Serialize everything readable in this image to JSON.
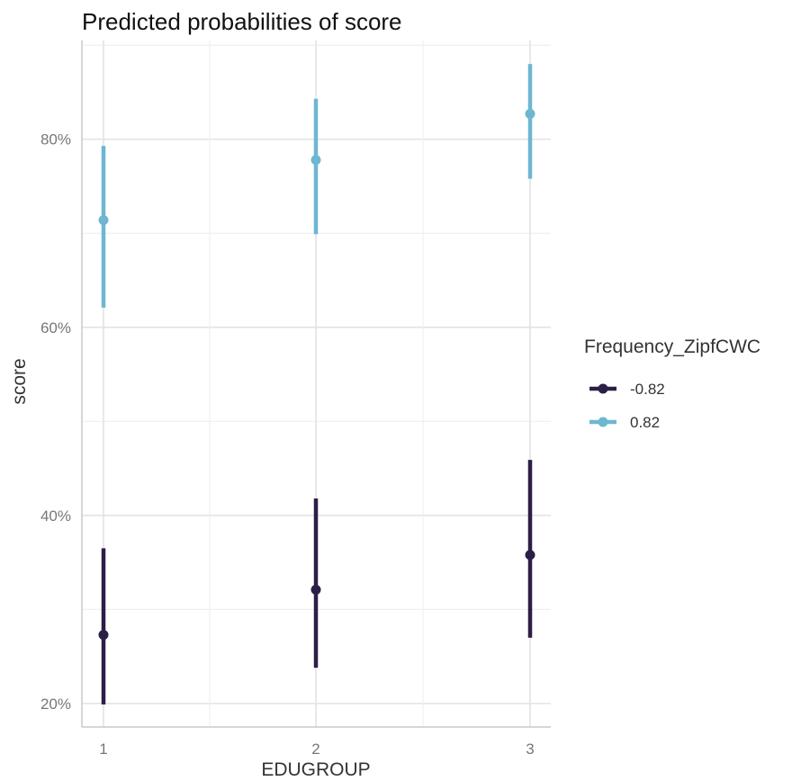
{
  "chart_data": {
    "type": "scatter",
    "title": "Predicted probabilities of score",
    "xlabel": "EDUGROUP",
    "ylabel": "score",
    "categories": [
      "1",
      "2",
      "3"
    ],
    "y_ticks": [
      "20%",
      "40%",
      "60%",
      "80%"
    ],
    "y_tick_values": [
      20,
      40,
      60,
      80
    ],
    "ylim": [
      17.5,
      90.5
    ],
    "grid": true,
    "legend_title": "Frequency_ZipfCWC",
    "legend_position": "right",
    "series": [
      {
        "name": "-0.82",
        "color": "#2d1e45",
        "values": [
          27.3,
          32.1,
          35.8
        ],
        "lower": [
          19.9,
          23.8,
          27.0
        ],
        "upper": [
          36.5,
          41.8,
          45.9
        ]
      },
      {
        "name": "0.82",
        "color": "#6fb6d1",
        "values": [
          71.4,
          77.8,
          82.7
        ],
        "lower": [
          62.1,
          69.9,
          75.8
        ],
        "upper": [
          79.3,
          84.3,
          88.0
        ]
      }
    ]
  }
}
